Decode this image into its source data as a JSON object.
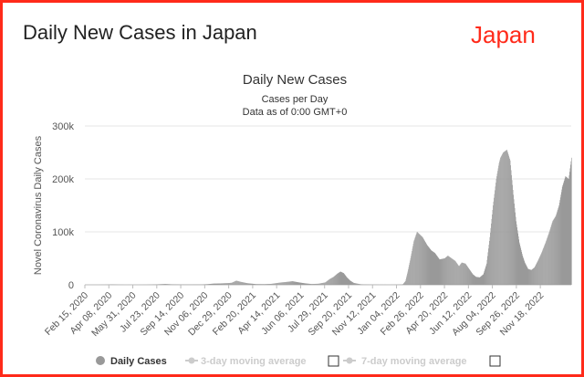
{
  "page": {
    "title": "Daily New Cases in Japan",
    "country_tag": "Japan",
    "frame_color": "#ff2a1a"
  },
  "chart_data": {
    "type": "bar",
    "title": "Daily New Cases",
    "subtitle": "Cases per Day",
    "subtitle2": "Data as of 0:00 GMT+0",
    "ylabel": "Novel Coronavirus Daily Cases",
    "xlabel": "",
    "ylim": [
      0,
      300000
    ],
    "yticks": [
      0,
      100000,
      200000,
      300000
    ],
    "ytick_labels": [
      "0",
      "100k",
      "200k",
      "300k"
    ],
    "x_start": "2020-02-15",
    "x_end": "2023-01-05",
    "xtick_labels": [
      "Feb 15, 2020",
      "Apr 08, 2020",
      "May 31, 2020",
      "Jul 23, 2020",
      "Sep 14, 2020",
      "Nov 06, 2020",
      "Dec 29, 2020",
      "Feb 20, 2021",
      "Apr 14, 2021",
      "Jun 06, 2021",
      "Jul 29, 2021",
      "Sep 20, 2021",
      "Nov 12, 2021",
      "Jan 04, 2022",
      "Feb 26, 2022",
      "Apr 20, 2022",
      "Jun 12, 2022",
      "Aug 04, 2022",
      "Sep 26, 2022",
      "Nov 18, 2022"
    ],
    "bar_color": "#999999",
    "grid": true,
    "legend_position": "bottom",
    "legend": [
      {
        "label": "Daily Cases",
        "color": "#999999",
        "symbol": "circle",
        "active": true
      },
      {
        "label": "3-day moving average",
        "color": "#cccccc",
        "symbol": "line",
        "active": false
      },
      {
        "label": "7-day moving average",
        "color": "#cccccc",
        "symbol": "line",
        "active": false
      }
    ],
    "series": [
      {
        "values_note": "weekly-sampled daily new cases",
        "points": [
          [
            "2020-02-15",
            10
          ],
          [
            "2020-03-01",
            20
          ],
          [
            "2020-03-15",
            40
          ],
          [
            "2020-04-01",
            200
          ],
          [
            "2020-04-12",
            650
          ],
          [
            "2020-04-25",
            250
          ],
          [
            "2020-05-10",
            50
          ],
          [
            "2020-05-31",
            40
          ],
          [
            "2020-06-20",
            80
          ],
          [
            "2020-07-10",
            400
          ],
          [
            "2020-07-23",
            950
          ],
          [
            "2020-08-07",
            1500
          ],
          [
            "2020-08-20",
            900
          ],
          [
            "2020-09-14",
            500
          ],
          [
            "2020-10-05",
            500
          ],
          [
            "2020-10-25",
            700
          ],
          [
            "2020-11-06",
            1200
          ],
          [
            "2020-11-20",
            2300
          ],
          [
            "2020-12-05",
            2600
          ],
          [
            "2020-12-20",
            3200
          ],
          [
            "2020-12-29",
            3800
          ],
          [
            "2021-01-08",
            7800
          ],
          [
            "2021-01-18",
            5500
          ],
          [
            "2021-02-01",
            3000
          ],
          [
            "2021-02-20",
            1300
          ],
          [
            "2021-03-10",
            1200
          ],
          [
            "2021-03-25",
            1800
          ],
          [
            "2021-04-14",
            4300
          ],
          [
            "2021-04-28",
            5500
          ],
          [
            "2021-05-10",
            6800
          ],
          [
            "2021-05-22",
            4800
          ],
          [
            "2021-06-06",
            2800
          ],
          [
            "2021-06-20",
            1500
          ],
          [
            "2021-07-05",
            2000
          ],
          [
            "2021-07-20",
            4500
          ],
          [
            "2021-07-29",
            10500
          ],
          [
            "2021-08-07",
            15000
          ],
          [
            "2021-08-15",
            21000
          ],
          [
            "2021-08-22",
            25000
          ],
          [
            "2021-08-29",
            22000
          ],
          [
            "2021-09-05",
            14000
          ],
          [
            "2021-09-12",
            8000
          ],
          [
            "2021-09-20",
            3500
          ],
          [
            "2021-10-05",
            1000
          ],
          [
            "2021-10-20",
            400
          ],
          [
            "2021-11-12",
            200
          ],
          [
            "2021-12-10",
            150
          ],
          [
            "2021-12-28",
            400
          ],
          [
            "2022-01-04",
            700
          ],
          [
            "2022-01-10",
            7000
          ],
          [
            "2022-01-15",
            25000
          ],
          [
            "2022-01-21",
            50000
          ],
          [
            "2022-01-28",
            82000
          ],
          [
            "2022-02-04",
            100000
          ],
          [
            "2022-02-10",
            95000
          ],
          [
            "2022-02-16",
            90000
          ],
          [
            "2022-02-26",
            75000
          ],
          [
            "2022-03-07",
            65000
          ],
          [
            "2022-03-15",
            60000
          ],
          [
            "2022-03-25",
            48000
          ],
          [
            "2022-04-05",
            50000
          ],
          [
            "2022-04-12",
            55000
          ],
          [
            "2022-04-20",
            50000
          ],
          [
            "2022-04-28",
            45000
          ],
          [
            "2022-05-06",
            35000
          ],
          [
            "2022-05-12",
            42000
          ],
          [
            "2022-05-20",
            40000
          ],
          [
            "2022-05-28",
            30000
          ],
          [
            "2022-06-05",
            20000
          ],
          [
            "2022-06-12",
            15000
          ],
          [
            "2022-06-20",
            14000
          ],
          [
            "2022-06-28",
            20000
          ],
          [
            "2022-07-05",
            40000
          ],
          [
            "2022-07-12",
            90000
          ],
          [
            "2022-07-19",
            150000
          ],
          [
            "2022-07-26",
            200000
          ],
          [
            "2022-08-01",
            230000
          ],
          [
            "2022-08-04",
            240000
          ],
          [
            "2022-08-10",
            250000
          ],
          [
            "2022-08-18",
            255000
          ],
          [
            "2022-08-25",
            235000
          ],
          [
            "2022-09-01",
            170000
          ],
          [
            "2022-09-07",
            120000
          ],
          [
            "2022-09-14",
            80000
          ],
          [
            "2022-09-21",
            55000
          ],
          [
            "2022-09-26",
            42000
          ],
          [
            "2022-10-03",
            30000
          ],
          [
            "2022-10-10",
            28000
          ],
          [
            "2022-10-17",
            33000
          ],
          [
            "2022-10-24",
            45000
          ],
          [
            "2022-11-01",
            60000
          ],
          [
            "2022-11-10",
            80000
          ],
          [
            "2022-11-18",
            100000
          ],
          [
            "2022-11-25",
            120000
          ],
          [
            "2022-12-02",
            130000
          ],
          [
            "2022-12-09",
            150000
          ],
          [
            "2022-12-16",
            185000
          ],
          [
            "2022-12-23",
            205000
          ],
          [
            "2022-12-30",
            200000
          ],
          [
            "2023-01-05",
            240000
          ]
        ]
      }
    ]
  }
}
